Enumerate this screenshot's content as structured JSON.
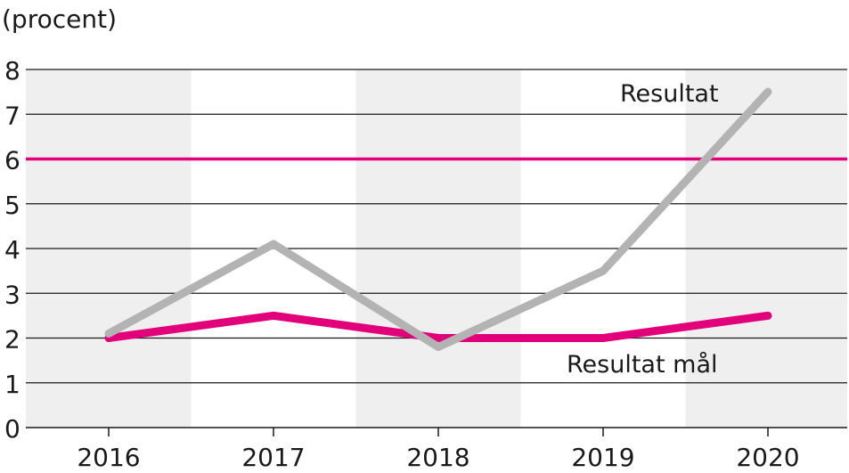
{
  "chart_data": {
    "type": "line",
    "ylabel": "(procent)",
    "categories": [
      "2016",
      "2017",
      "2018",
      "2019",
      "2020"
    ],
    "ylim": [
      0,
      8
    ],
    "yticks": [
      0,
      1,
      2,
      3,
      4,
      5,
      6,
      7,
      8
    ],
    "grid": "horizontal",
    "colors": {
      "target_line": "#e2007a",
      "resultat": "#b3b3b3",
      "resultat_mal": "#e2007a",
      "band": "#efefef",
      "gridline": "#1a1a1a"
    },
    "series": [
      {
        "name": "Resultat",
        "values": [
          2.1,
          4.1,
          1.8,
          3.5,
          7.5
        ]
      },
      {
        "name": "Resultat mål",
        "values": [
          2.0,
          2.5,
          2.0,
          2.0,
          2.5
        ]
      }
    ],
    "reference_line": {
      "value": 6
    }
  }
}
